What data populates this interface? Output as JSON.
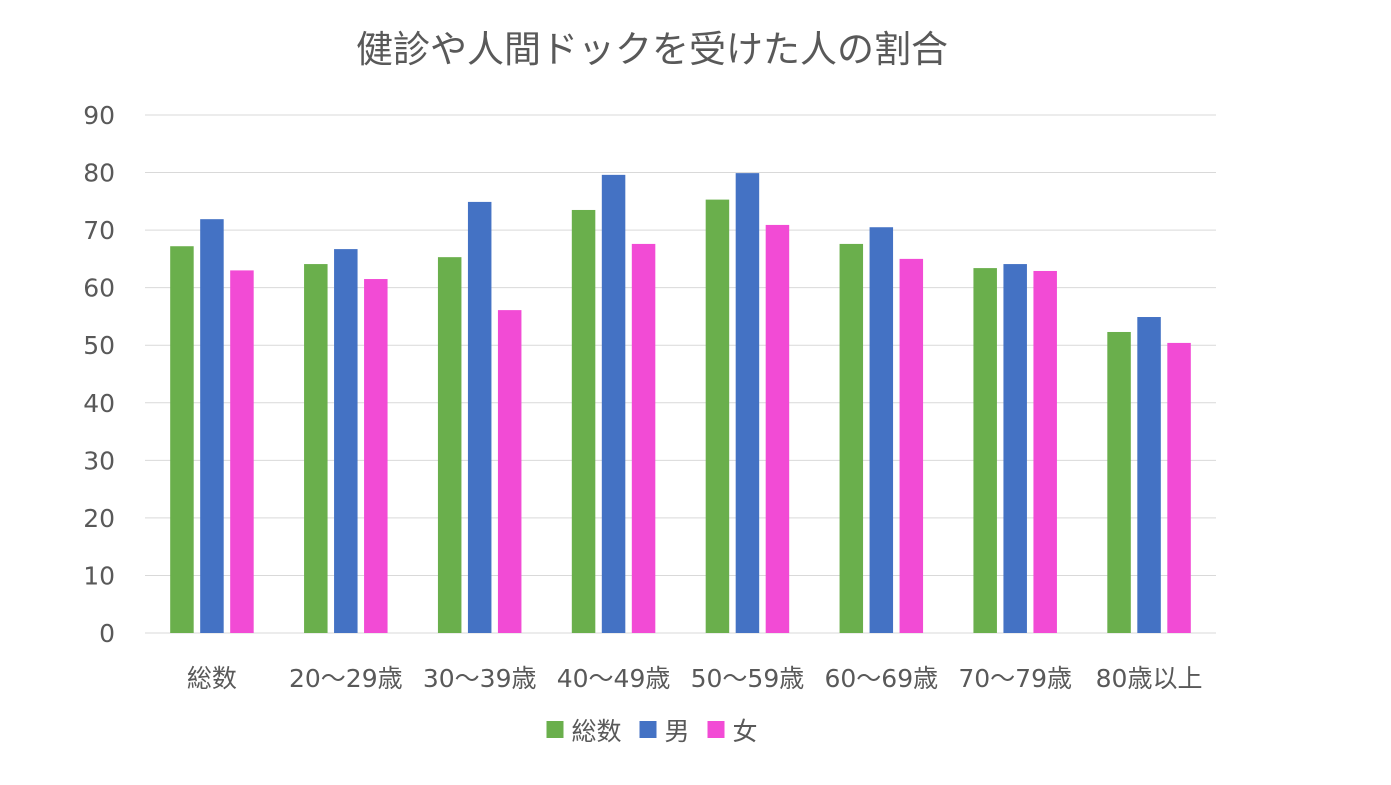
{
  "chart_data": {
    "type": "bar",
    "title": "健診や人間ドックを受けた人の割合",
    "xlabel": "",
    "ylabel": "",
    "categories": [
      "総数",
      "20～29歳",
      "30～39歳",
      "40～49歳",
      "50～59歳",
      "60～69歳",
      "70～79歳",
      "80歳以上"
    ],
    "series": [
      {
        "name": "総数",
        "color": "#6AAF4C",
        "values": [
          67.2,
          64.1,
          65.3,
          73.5,
          75.3,
          67.6,
          63.4,
          52.3
        ]
      },
      {
        "name": "男",
        "color": "#4472C4",
        "values": [
          71.9,
          66.7,
          74.9,
          79.6,
          79.9,
          70.5,
          64.1,
          54.9
        ]
      },
      {
        "name": "女",
        "color": "#F24BD5",
        "values": [
          63.0,
          61.5,
          56.1,
          67.6,
          70.9,
          65.0,
          62.9,
          50.4
        ]
      }
    ],
    "ylim": [
      0,
      90
    ],
    "yticks": [
      0,
      10,
      20,
      30,
      40,
      50,
      60,
      70,
      80,
      90
    ],
    "grid": true,
    "legend_position": "bottom",
    "colors": {
      "gridline": "#D9D9D9",
      "text": "#595959"
    }
  }
}
